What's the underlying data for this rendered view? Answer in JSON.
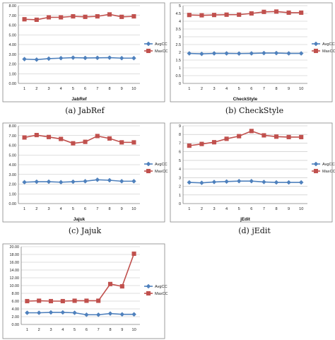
{
  "legend": {
    "avg_label": "AvgCC",
    "max_label": "MaxCC"
  },
  "colors": {
    "avg": "#4F81BD",
    "max": "#C0504D",
    "frame": "#868686",
    "grid": "#BFBFBF"
  },
  "chart_data": [
    {
      "type": "line",
      "title": "JabRef",
      "caption": "(a) JabRef",
      "x": [
        1,
        2,
        3,
        4,
        5,
        6,
        7,
        8,
        9,
        10
      ],
      "ylim": [
        0,
        8
      ],
      "yticks": [
        "0.00",
        "1.00",
        "2.00",
        "3.00",
        "4.00",
        "5.00",
        "6.00",
        "7.00",
        "8.00"
      ],
      "legend_position": "right",
      "grid": true,
      "series": [
        {
          "name": "AvgCC",
          "values": [
            2.5,
            2.45,
            2.55,
            2.6,
            2.65,
            2.62,
            2.63,
            2.65,
            2.6,
            2.6
          ]
        },
        {
          "name": "MaxCC",
          "values": [
            6.6,
            6.55,
            6.8,
            6.8,
            6.9,
            6.85,
            6.9,
            7.1,
            6.85,
            6.9
          ]
        }
      ]
    },
    {
      "type": "line",
      "title": "CheckStyle",
      "caption": "(b) CheckStyle",
      "x": [
        1,
        2,
        3,
        4,
        5,
        6,
        7,
        8,
        9,
        10
      ],
      "ylim": [
        0,
        5
      ],
      "yticks": [
        "0",
        "0.5",
        "1",
        "1.5",
        "2",
        "2.5",
        "3",
        "3.5",
        "4",
        "4.5",
        "5"
      ],
      "legend_position": "right",
      "grid": true,
      "series": [
        {
          "name": "AvgCC",
          "values": [
            1.93,
            1.9,
            1.93,
            1.93,
            1.92,
            1.93,
            1.95,
            1.95,
            1.93,
            1.93
          ]
        },
        {
          "name": "MaxCC",
          "values": [
            4.4,
            4.38,
            4.4,
            4.42,
            4.42,
            4.5,
            4.6,
            4.62,
            4.55,
            4.55
          ]
        }
      ]
    },
    {
      "type": "line",
      "title": "Jajuk",
      "caption": "(c) Jajuk",
      "x": [
        1,
        2,
        3,
        4,
        5,
        6,
        7,
        8,
        9,
        10
      ],
      "ylim": [
        0,
        8
      ],
      "yticks": [
        "0.00",
        "1.00",
        "2.00",
        "3.00",
        "4.00",
        "5.00",
        "6.00",
        "7.00",
        "8.00"
      ],
      "legend_position": "right",
      "grid": true,
      "series": [
        {
          "name": "AvgCC",
          "values": [
            2.2,
            2.25,
            2.25,
            2.2,
            2.25,
            2.3,
            2.45,
            2.4,
            2.3,
            2.3
          ]
        },
        {
          "name": "MaxCC",
          "values": [
            6.8,
            7.05,
            6.85,
            6.65,
            6.2,
            6.35,
            6.95,
            6.7,
            6.3,
            6.3
          ]
        }
      ]
    },
    {
      "type": "line",
      "title": "jEdit",
      "caption": "(d) jEdit",
      "x": [
        1,
        2,
        3,
        4,
        5,
        6,
        7,
        8,
        9,
        10
      ],
      "ylim": [
        0,
        9
      ],
      "yticks": [
        "0",
        "1",
        "2",
        "3",
        "4",
        "5",
        "6",
        "7",
        "8",
        "9"
      ],
      "legend_position": "right",
      "grid": true,
      "series": [
        {
          "name": "AvgCC",
          "values": [
            2.45,
            2.4,
            2.5,
            2.55,
            2.6,
            2.6,
            2.5,
            2.45,
            2.45,
            2.45
          ]
        },
        {
          "name": "MaxCC",
          "values": [
            6.7,
            6.9,
            7.1,
            7.5,
            7.8,
            8.4,
            7.9,
            7.75,
            7.7,
            7.7
          ]
        }
      ]
    },
    {
      "type": "line",
      "title": "",
      "caption": "",
      "x": [
        1,
        2,
        3,
        4,
        5,
        6,
        7,
        8,
        9,
        10
      ],
      "ylim": [
        0,
        20
      ],
      "yticks": [
        "0.00",
        "2.00",
        "4.00",
        "6.00",
        "8.00",
        "10.00",
        "12.00",
        "14.00",
        "16.00",
        "18.00",
        "20.00"
      ],
      "legend_position": "right",
      "grid": true,
      "series": [
        {
          "name": "AvgCC",
          "values": [
            3.0,
            3.0,
            3.1,
            3.1,
            3.0,
            2.5,
            2.5,
            2.8,
            2.6,
            2.6
          ]
        },
        {
          "name": "MaxCC",
          "values": [
            6.0,
            6.1,
            6.0,
            6.0,
            6.1,
            6.1,
            6.1,
            10.4,
            9.8,
            18.2
          ]
        }
      ]
    }
  ]
}
